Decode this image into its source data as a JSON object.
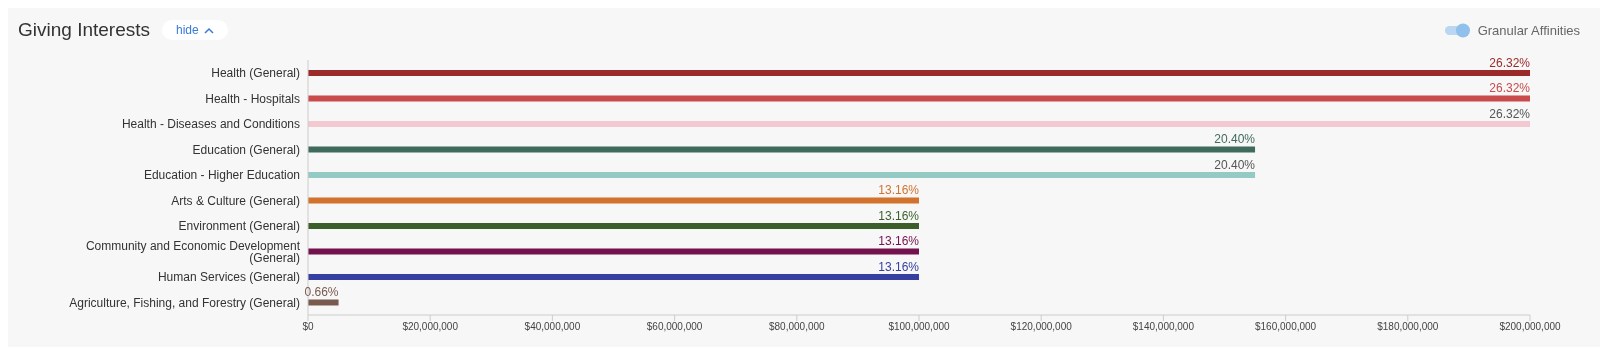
{
  "chart_data": {
    "type": "bar",
    "orientation": "horizontal",
    "title": "Giving Interests",
    "annotations": [
      "hide",
      "Granular Affinities",
      {
        "text": "26.32%",
        "x": 200000000,
        "y": "Health (General)"
      },
      {
        "text": "26.32%",
        "x": 200000000,
        "y": "Health - Hospitals"
      },
      {
        "text": "26.32%",
        "x": 200000000,
        "y": "Health - Diseases and Conditions"
      },
      {
        "text": "20.40%",
        "x": 155000000,
        "y": "Education (General)"
      },
      {
        "text": "20.40%",
        "x": 155000000,
        "y": "Education - Higher Education"
      },
      {
        "text": "13.16%",
        "x": 100000000,
        "y": "Arts & Culture (General)"
      },
      {
        "text": "13.16%",
        "x": 100000000,
        "y": "Environment (General)"
      },
      {
        "text": "13.16%",
        "x": 100000000,
        "y": "Community and Economic Development (General)"
      },
      {
        "text": "13.16%",
        "x": 100000000,
        "y": "Human Services (General)"
      },
      {
        "text": "0.66%",
        "x": 5000000,
        "y": "Agriculture, Fishing, and Forestry (General)"
      }
    ],
    "categories": [
      "Health (General)",
      "Health - Hospitals",
      "Health - Diseases and Conditions",
      "Education (General)",
      "Education - Higher Education",
      "Arts & Culture (General)",
      "Environment (General)",
      "Community and Economic Development (General)",
      "Human Services (General)",
      "Agriculture, Fishing, and Forestry (General)"
    ],
    "values": [
      200000000,
      200000000,
      200000000,
      155000000,
      155000000,
      100000000,
      100000000,
      100000000,
      100000000,
      5000000
    ],
    "colors": [
      "#9b2a2a",
      "#c94b4b",
      "#f2c9d0",
      "#3f6b5a",
      "#93cbc4",
      "#d2722d",
      "#3b5f2b",
      "#74124e",
      "#3640a0",
      "#7a5a4e"
    ],
    "xlim": [
      0,
      200000000
    ],
    "xticks": [
      {
        "value": 0,
        "label": "$0"
      },
      {
        "value": 20000000,
        "label": "$20,000,000"
      },
      {
        "value": 40000000,
        "label": "$40,000,000"
      },
      {
        "value": 60000000,
        "label": "$60,000,000"
      },
      {
        "value": 80000000,
        "label": "$80,000,000"
      },
      {
        "value": 100000000,
        "label": "$100,000,000"
      },
      {
        "value": 120000000,
        "label": "$120,000,000"
      },
      {
        "value": 140000000,
        "label": "$140,000,000"
      },
      {
        "value": 160000000,
        "label": "$160,000,000"
      },
      {
        "value": 180000000,
        "label": "$180,000,000"
      },
      {
        "value": 200000000,
        "label": "$200,000,000"
      }
    ],
    "grid": false,
    "legend": false
  }
}
